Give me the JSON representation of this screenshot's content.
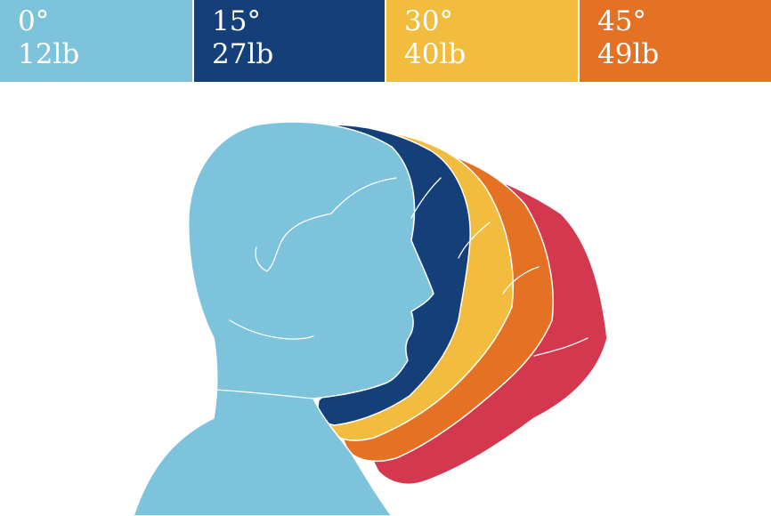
{
  "legend": [
    {
      "angle": "0°",
      "weight": "12lb",
      "color": "#7ec3dc"
    },
    {
      "angle": "15°",
      "weight": "27lb",
      "color": "#153f79"
    },
    {
      "angle": "30°",
      "weight": "40lb",
      "color": "#f2bd3f"
    },
    {
      "angle": "45°",
      "weight": "49lb",
      "color": "#e57224"
    }
  ],
  "extra_tilt_color": "#d4384f"
}
